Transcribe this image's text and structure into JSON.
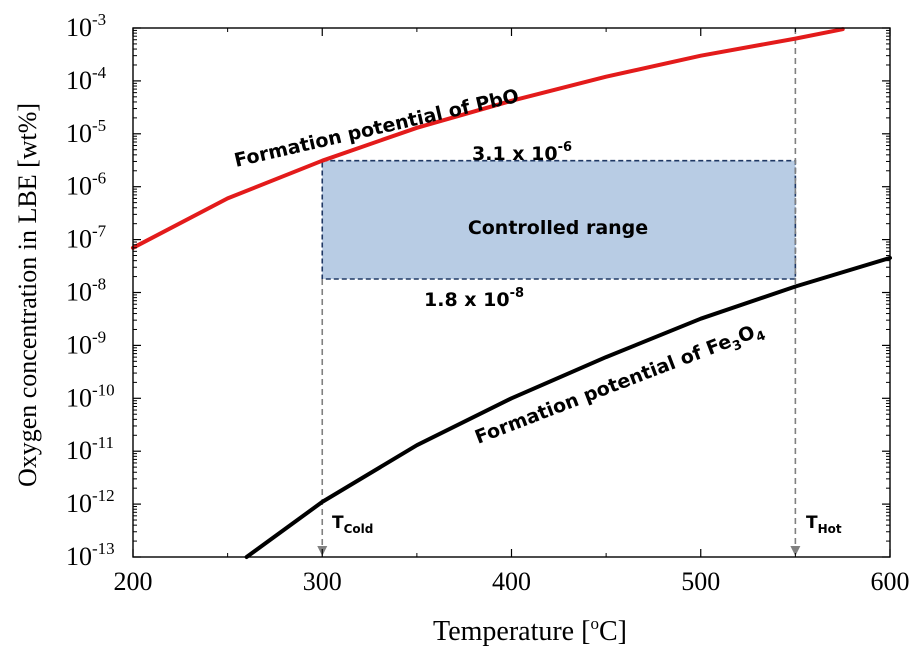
{
  "chart_data": {
    "type": "line",
    "title": "",
    "xlabel": "Temperature [",
    "xlabel_sup": "o",
    "xlabel_tail": "C]",
    "ylabel": "Oxygen concentration in LBE [wt%]",
    "x_range": [
      200,
      600
    ],
    "y_range": [
      1e-13,
      0.001
    ],
    "y_scale": "log",
    "grid": false,
    "x_ticks": [
      200,
      300,
      400,
      500,
      600
    ],
    "x_tick_labels": [
      "200",
      "300",
      "400",
      "500",
      "600"
    ],
    "y_ticks": [
      -13,
      -12,
      -11,
      -10,
      -9,
      -8,
      -7,
      -6,
      -5,
      -4,
      -3
    ],
    "y_tick_base": "10",
    "y_tick_exponents": [
      "-13",
      "-12",
      "-11",
      "-10",
      "-9",
      "-8",
      "-7",
      "-6",
      "-5",
      "-4",
      "-3"
    ],
    "series": [
      {
        "name": "Formation potential of PbO",
        "label_main": "Formation potential of PbO",
        "color": "#e31b1b",
        "x": [
          200,
          250,
          300,
          350,
          400,
          450,
          500,
          550,
          575
        ],
        "y": [
          7e-08,
          6e-07,
          3.1e-06,
          1.3e-05,
          4.2e-05,
          0.00012,
          0.0003,
          0.00063,
          0.00095
        ]
      },
      {
        "name": "Formation potential of Fe3O4",
        "label_main": "Formation potential of Fe",
        "label_sub1": "3",
        "label_mid": "O",
        "label_sub2": "4",
        "color": "#000000",
        "x": [
          260,
          300,
          350,
          400,
          450,
          500,
          550,
          600
        ],
        "y": [
          1e-13,
          1.1e-12,
          1.3e-11,
          1e-10,
          6e-10,
          3.2e-09,
          1.3e-08,
          4.5e-08
        ]
      }
    ],
    "controlled_range": {
      "label": "Controlled range",
      "x": [
        300,
        550
      ],
      "y": [
        1.8e-08,
        3.1e-06
      ],
      "fill": "#b8cce4",
      "stroke": "#1f3864",
      "upper_label_base": "3.1 x 10",
      "upper_label_exp": "-6",
      "lower_label_base": "1.8 x 10",
      "lower_label_exp": "-8"
    },
    "markers": [
      {
        "x": 300,
        "label": "T",
        "label_sub": "Cold"
      },
      {
        "x": 550,
        "label": "T",
        "label_sub": "Hot"
      }
    ]
  }
}
